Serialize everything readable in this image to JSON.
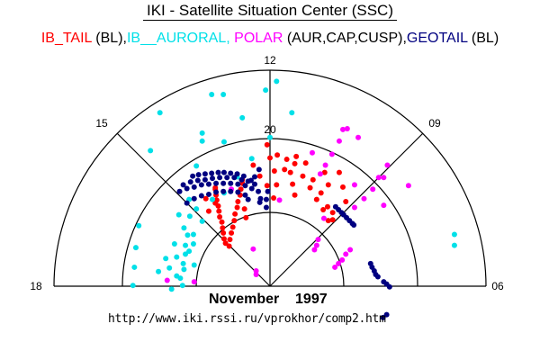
{
  "header": {
    "title": "IKI - Satellite Situation Center (SSC)"
  },
  "legend": [
    {
      "text": "IB_TAIL",
      "color": "#ff0000"
    },
    {
      "text": " (BL),",
      "color": "#000000"
    },
    {
      "text": "IB__AURORAL, ",
      "color": "#00e0e8"
    },
    {
      "text": "POLAR",
      "color": "#ff00ff"
    },
    {
      "text": " (AUR,CAP,CUSP),",
      "color": "#000000"
    },
    {
      "text": "GEOTAIL",
      "color": "#000080"
    },
    {
      "text": " (BL)",
      "color": "#000000"
    }
  ],
  "footer": {
    "date": "November    1997",
    "url": "http://www.iki.rssi.ru/vprokhor/comp2.htm"
  },
  "chart_data": {
    "type": "scatter",
    "projection": "polar (MLT vs. colatitude), dayside half; points given as x_deg (dawn +) and y_deg (noon +) from pole",
    "mlt_labels": {
      "12": "12",
      "15": "15",
      "09": "09",
      "18": "18",
      "06": "06"
    },
    "ring_colatitudes": [
      10,
      20,
      30
    ],
    "ring_label": "20",
    "series": [
      {
        "name": "IB_TAIL",
        "color": "#ff0000",
        "points": [
          [
            -0.4,
            19.4
          ],
          [
            0,
            17.6
          ],
          [
            1.0,
            18.0
          ],
          [
            2.3,
            17.4
          ],
          [
            3.6,
            17.8
          ],
          [
            4.9,
            16.9
          ],
          [
            3.4,
            16.8
          ],
          [
            2.0,
            16.0
          ],
          [
            2.8,
            15.6
          ],
          [
            0.6,
            15.8
          ],
          [
            4.5,
            15.1
          ],
          [
            5.9,
            14.6
          ],
          [
            7.5,
            15.6
          ],
          [
            9.5,
            15.6
          ],
          [
            -0.4,
            13.8
          ],
          [
            0.9,
            13.9
          ],
          [
            3.1,
            14.0
          ],
          [
            5.5,
            13.5
          ],
          [
            8.0,
            13.9
          ],
          [
            10.0,
            13.6
          ],
          [
            7.0,
            12.8
          ],
          [
            0.5,
            12.1
          ],
          [
            3.4,
            12.5
          ],
          [
            6.4,
            11.9
          ],
          [
            10.4,
            11.6
          ],
          [
            7.9,
            10.9
          ],
          [
            7.3,
            10.5
          ],
          [
            8.6,
            10.1
          ],
          [
            8.0,
            9.0
          ],
          [
            8.6,
            9.1
          ],
          [
            -2.3,
            16.6
          ],
          [
            -1.4,
            15.1
          ],
          [
            -3.8,
            14.6
          ],
          [
            -7.5,
            13.5
          ],
          [
            -8.8,
            12.0
          ],
          [
            -7.5,
            11.4
          ],
          [
            -8.4,
            10.3
          ],
          [
            -3.3,
            9.4
          ],
          [
            -3.5,
            10.6
          ],
          [
            -7.5,
            13.3
          ],
          [
            -7.4,
            12.5
          ],
          [
            -7.3,
            11.8
          ],
          [
            -7.1,
            11.0
          ],
          [
            -7.0,
            10.3
          ],
          [
            -6.9,
            9.5
          ],
          [
            -6.6,
            8.8
          ],
          [
            -6.5,
            8.0
          ],
          [
            -6.4,
            7.3
          ],
          [
            -6.3,
            6.5
          ],
          [
            -6.1,
            5.9
          ],
          [
            -3.8,
            14.1
          ],
          [
            -4.0,
            13.3
          ],
          [
            -4.1,
            12.5
          ],
          [
            -4.4,
            11.6
          ],
          [
            -4.5,
            10.8
          ],
          [
            -4.8,
            9.9
          ],
          [
            -4.9,
            9.0
          ],
          [
            -5.1,
            8.1
          ],
          [
            -5.3,
            7.3
          ],
          [
            -5.5,
            6.4
          ],
          [
            -5.6,
            5.5
          ]
        ]
      },
      {
        "name": "IB__AURORAL",
        "color": "#00e0e8",
        "points": [
          [
            0.9,
            28.1
          ],
          [
            -0.6,
            26.9
          ],
          [
            -8.0,
            26.3
          ],
          [
            -6.4,
            26.3
          ],
          [
            -15.1,
            23.8
          ],
          [
            -3.8,
            23.1
          ],
          [
            3.0,
            23.8
          ],
          [
            -9.3,
            21.0
          ],
          [
            -9.3,
            19.9
          ],
          [
            -6.3,
            19.8
          ],
          [
            -16.4,
            18.6
          ],
          [
            0,
            20.4
          ],
          [
            -2.5,
            17.5
          ],
          [
            -10.1,
            16.5
          ],
          [
            -4.5,
            15.0
          ],
          [
            -6.3,
            12.8
          ],
          [
            -11.1,
            11.9
          ],
          [
            -10.1,
            10.6
          ],
          [
            -12.5,
            9.8
          ],
          [
            -11.0,
            9.6
          ],
          [
            -9.3,
            8.9
          ],
          [
            -18.0,
            8.3
          ],
          [
            -11.8,
            8.0
          ],
          [
            -10.5,
            7.1
          ],
          [
            -11.3,
            7.0
          ],
          [
            -13.1,
            5.8
          ],
          [
            -11.6,
            5.6
          ],
          [
            -10.5,
            5.8
          ],
          [
            -18.4,
            5.3
          ],
          [
            -11.1,
            4.8
          ],
          [
            -11.6,
            4.4
          ],
          [
            -12.8,
            4.0
          ],
          [
            -14.3,
            3.8
          ],
          [
            -11.9,
            3.1
          ],
          [
            -10.4,
            2.9
          ],
          [
            -13.8,
            2.5
          ],
          [
            -18.6,
            2.6
          ],
          [
            -11.8,
            2.3
          ],
          [
            -15.3,
            2.0
          ],
          [
            -12.8,
            1.4
          ],
          [
            -12.3,
            1.1
          ],
          [
            -18.8,
            0.1
          ],
          [
            -12.0,
            0.1
          ],
          [
            -13.5,
            -0.4
          ],
          [
            25.3,
            7.1
          ],
          [
            25.3,
            5.6
          ],
          [
            -7.9,
            11.9
          ]
        ]
      },
      {
        "name": "POLAR",
        "color": "#ff00ff",
        "points": [
          [
            10.0,
            21.5
          ],
          [
            10.6,
            21.6
          ],
          [
            9.5,
            19.9
          ],
          [
            12.1,
            20.4
          ],
          [
            5.8,
            18.3
          ],
          [
            8.5,
            18.1
          ],
          [
            7.6,
            16.6
          ],
          [
            6.9,
            15.4
          ],
          [
            16.1,
            16.6
          ],
          [
            14.9,
            14.9
          ],
          [
            15.6,
            14.9
          ],
          [
            19.0,
            13.8
          ],
          [
            11.6,
            13.9
          ],
          [
            14.1,
            13.3
          ],
          [
            12.9,
            12.0
          ],
          [
            15.6,
            11.1
          ],
          [
            11.6,
            10.8
          ],
          [
            1.3,
            11.8
          ],
          [
            -5.3,
            13.3
          ],
          [
            7.4,
            9.3
          ],
          [
            6.6,
            6.4
          ],
          [
            6.4,
            5.6
          ],
          [
            6.1,
            5.0
          ],
          [
            -2.3,
            5.1
          ],
          [
            11.0,
            5.0
          ],
          [
            10.4,
            4.4
          ],
          [
            9.9,
            3.6
          ],
          [
            9.4,
            3.1
          ],
          [
            8.9,
            2.6
          ],
          [
            -1.9,
            2.1
          ],
          [
            -1.9,
            1.6
          ],
          [
            -14.1,
            0.8
          ],
          [
            -10.4,
            0.6
          ]
        ]
      },
      {
        "name": "GEOTAIL",
        "color": "#000080",
        "points": [
          [
            -10.6,
            15.1
          ],
          [
            -9.8,
            15.3
          ],
          [
            -8.9,
            15.4
          ],
          [
            -8.0,
            15.5
          ],
          [
            -7.1,
            15.6
          ],
          [
            -6.3,
            15.6
          ],
          [
            -5.4,
            15.5
          ],
          [
            -4.5,
            15.4
          ],
          [
            -3.6,
            15.1
          ],
          [
            -11.9,
            13.9
          ],
          [
            -10.9,
            14.3
          ],
          [
            -9.9,
            14.5
          ],
          [
            -8.9,
            14.6
          ],
          [
            -7.9,
            14.8
          ],
          [
            -6.9,
            14.9
          ],
          [
            -5.9,
            14.9
          ],
          [
            -4.9,
            14.9
          ],
          [
            -3.9,
            14.6
          ],
          [
            -3.0,
            14.4
          ],
          [
            -12.4,
            13.0
          ],
          [
            -11.4,
            13.4
          ],
          [
            -10.4,
            13.6
          ],
          [
            -9.4,
            13.9
          ],
          [
            -8.4,
            14.0
          ],
          [
            -7.4,
            14.1
          ],
          [
            -6.4,
            14.1
          ],
          [
            -5.4,
            14.1
          ],
          [
            -4.4,
            14.0
          ],
          [
            -3.4,
            13.8
          ],
          [
            -2.5,
            13.4
          ],
          [
            -11.4,
            11.4
          ],
          [
            -10.4,
            12.0
          ],
          [
            -9.4,
            12.4
          ],
          [
            -8.4,
            12.6
          ],
          [
            -7.4,
            12.9
          ],
          [
            -6.4,
            13.0
          ],
          [
            -5.4,
            13.0
          ],
          [
            -4.4,
            12.9
          ],
          [
            -3.4,
            12.5
          ],
          [
            -2.6,
            14.5
          ],
          [
            -2.1,
            15.0
          ],
          [
            -1.5,
            16.0
          ],
          [
            -2.1,
            14.0
          ],
          [
            -1.6,
            13.0
          ],
          [
            -1.3,
            12.0
          ],
          [
            -0.5,
            11.9
          ],
          [
            -0.5,
            10.8
          ],
          [
            -1.4,
            11.5
          ],
          [
            -3.0,
            11.9
          ],
          [
            -0.3,
            13.0
          ],
          [
            9.0,
            10.9
          ],
          [
            9.4,
            10.5
          ],
          [
            9.8,
            10.1
          ],
          [
            10.1,
            9.8
          ],
          [
            10.5,
            9.4
          ],
          [
            10.9,
            9.0
          ],
          [
            11.3,
            8.6
          ],
          [
            11.5,
            8.4
          ],
          [
            13.8,
            3.1
          ],
          [
            14.0,
            2.6
          ],
          [
            14.3,
            2.1
          ],
          [
            14.5,
            1.6
          ],
          [
            14.8,
            1.3
          ],
          [
            15.6,
            0.6
          ],
          [
            16.0,
            0.3
          ],
          [
            16.4,
            -0.1
          ],
          [
            15.5,
            -4.3
          ],
          [
            16.0,
            -3.9
          ]
        ]
      }
    ]
  }
}
